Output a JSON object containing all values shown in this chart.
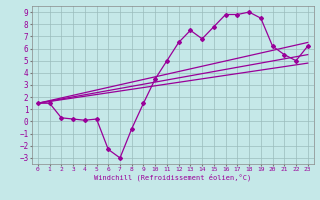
{
  "title": "",
  "xlabel": "Windchill (Refroidissement éolien,°C)",
  "background_color": "#c5e8e8",
  "grid_color": "#9bbcbc",
  "line_color": "#990099",
  "xlim": [
    -0.5,
    23.5
  ],
  "ylim": [
    -3.5,
    9.5
  ],
  "xticks": [
    0,
    1,
    2,
    3,
    4,
    5,
    6,
    7,
    8,
    9,
    10,
    11,
    12,
    13,
    14,
    15,
    16,
    17,
    18,
    19,
    20,
    21,
    22,
    23
  ],
  "yticks": [
    -3,
    -2,
    -1,
    0,
    1,
    2,
    3,
    4,
    5,
    6,
    7,
    8,
    9
  ],
  "line1_x": [
    0,
    1,
    2,
    3,
    4,
    5,
    6,
    7,
    8,
    9,
    10,
    11,
    12,
    13,
    14,
    15,
    16,
    17,
    18,
    19,
    20,
    21,
    22,
    23
  ],
  "line1_y": [
    1.5,
    1.5,
    0.3,
    0.2,
    0.1,
    0.2,
    -2.3,
    -3.0,
    -0.6,
    1.5,
    3.5,
    5.0,
    6.5,
    7.5,
    6.8,
    7.8,
    8.8,
    8.8,
    9.0,
    8.5,
    6.2,
    5.5,
    5.0,
    6.2
  ],
  "line2_x": [
    0,
    23
  ],
  "line2_y": [
    1.5,
    6.5
  ],
  "line3_x": [
    0,
    23
  ],
  "line3_y": [
    1.5,
    5.5
  ],
  "line4_x": [
    0,
    23
  ],
  "line4_y": [
    1.5,
    4.8
  ]
}
